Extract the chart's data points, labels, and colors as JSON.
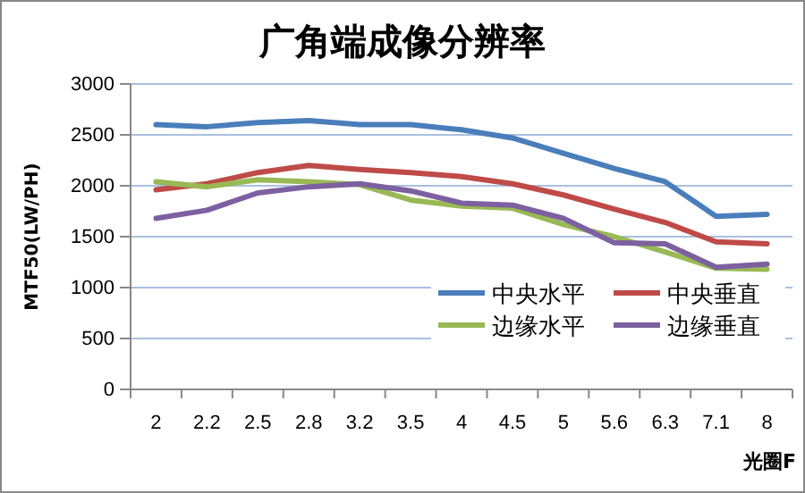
{
  "chart_data": {
    "type": "line",
    "title": "广角端成像分辨率",
    "xlabel": "光圈F",
    "ylabel": "MTF50(LW/PH)",
    "categories": [
      "2",
      "2.2",
      "2.5",
      "2.8",
      "3.2",
      "3.5",
      "4",
      "4.5",
      "5",
      "5.6",
      "6.3",
      "7.1",
      "8"
    ],
    "series": [
      {
        "name": "中央水平",
        "color": "#4a7ebb",
        "values": [
          2600,
          2580,
          2620,
          2640,
          2600,
          2600,
          2550,
          2470,
          2320,
          2170,
          2040,
          1700,
          1720
        ]
      },
      {
        "name": "中央垂直",
        "color": "#be4b48",
        "values": [
          1960,
          2020,
          2130,
          2200,
          2160,
          2130,
          2090,
          2020,
          1910,
          1770,
          1640,
          1450,
          1430
        ]
      },
      {
        "name": "边缘水平",
        "color": "#98b954",
        "values": [
          2040,
          1990,
          2060,
          2040,
          2010,
          1860,
          1800,
          1780,
          1620,
          1500,
          1350,
          1190,
          1180
        ]
      },
      {
        "name": "边缘垂直",
        "color": "#7d60a0",
        "values": [
          1680,
          1760,
          1930,
          1990,
          2020,
          1950,
          1830,
          1810,
          1680,
          1440,
          1430,
          1200,
          1230
        ]
      }
    ],
    "ylim": [
      0,
      3000
    ],
    "yticks": [
      0,
      500,
      1000,
      1500,
      2000,
      2500,
      3000
    ],
    "grid": "y",
    "legend": "bottom right",
    "marker": "none",
    "line_style": "solid"
  }
}
